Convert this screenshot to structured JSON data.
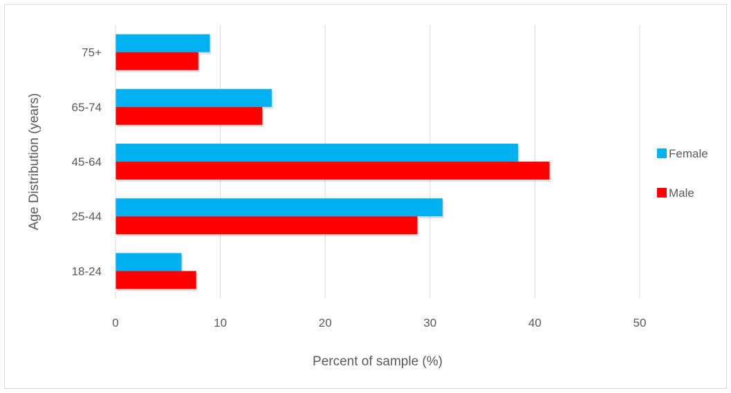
{
  "chart_data": {
    "type": "bar",
    "orientation": "horizontal",
    "categories": [
      "18-24",
      "25-44",
      "45-64",
      "65-74",
      "75+"
    ],
    "series": [
      {
        "name": "Female",
        "color": "#00b0f0",
        "values": [
          6.3,
          31.2,
          38.4,
          14.9,
          9.0
        ]
      },
      {
        "name": "Male",
        "color": "#ff0000",
        "values": [
          7.7,
          28.8,
          41.4,
          14.0,
          7.9
        ]
      }
    ],
    "xlabel": "Percent of sample (%)",
    "ylabel": "Age Distribution (years)",
    "xlim": [
      0,
      50
    ],
    "xticks": [
      0,
      10,
      20,
      30,
      40,
      50
    ],
    "grid": "vertical",
    "legend_position": "right"
  }
}
